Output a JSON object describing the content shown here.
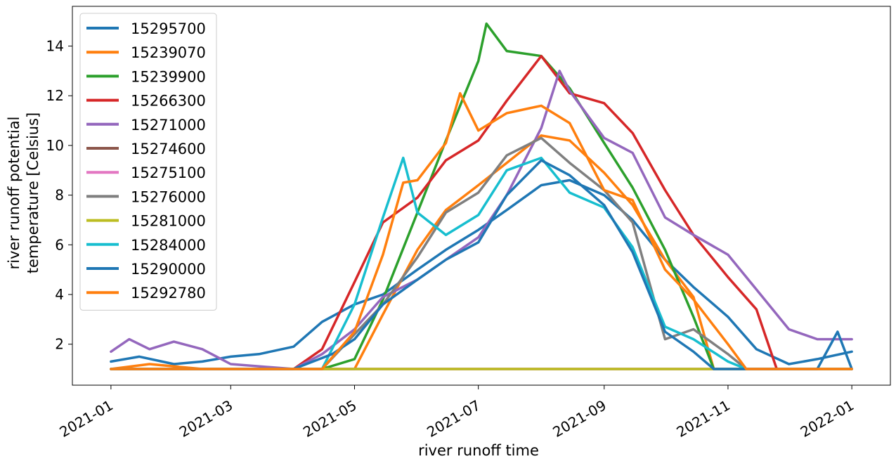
{
  "chart_data": {
    "type": "line",
    "title": "",
    "xlabel": "river runoff time",
    "ylabel_lines": [
      "river runoff potential",
      "temperature [Celsius]"
    ],
    "x_ticks": [
      "2021-01",
      "2021-03",
      "2021-05",
      "2021-07",
      "2021-09",
      "2021-11",
      "2022-01"
    ],
    "y_ticks": [
      2,
      4,
      6,
      8,
      10,
      12,
      14
    ],
    "xlim": [
      "2020-12-13",
      "2022-01-20"
    ],
    "ylim": [
      0.35,
      15.6
    ],
    "grid": false,
    "legend_position": "upper-left",
    "series": [
      {
        "name": "15295700",
        "color": "#1f77b4",
        "points": [
          [
            "2021-01-01",
            1.3
          ],
          [
            "2021-01-15",
            1.5
          ],
          [
            "2021-02-01",
            1.2
          ],
          [
            "2021-02-15",
            1.3
          ],
          [
            "2021-03-01",
            1.5
          ],
          [
            "2021-03-15",
            1.6
          ],
          [
            "2021-04-01",
            1.9
          ],
          [
            "2021-04-15",
            2.9
          ],
          [
            "2021-05-01",
            3.6
          ],
          [
            "2021-05-15",
            4.0
          ],
          [
            "2021-06-01",
            5.0
          ],
          [
            "2021-06-15",
            5.8
          ],
          [
            "2021-07-01",
            6.6
          ],
          [
            "2021-07-15",
            7.4
          ],
          [
            "2021-08-01",
            8.4
          ],
          [
            "2021-08-15",
            8.6
          ],
          [
            "2021-09-01",
            8.0
          ],
          [
            "2021-09-15",
            7.0
          ],
          [
            "2021-10-01",
            5.4
          ],
          [
            "2021-10-15",
            4.3
          ],
          [
            "2021-11-01",
            3.1
          ],
          [
            "2021-11-15",
            1.8
          ],
          [
            "2021-12-01",
            1.2
          ],
          [
            "2021-12-15",
            1.4
          ],
          [
            "2022-01-01",
            1.7
          ]
        ]
      },
      {
        "name": "15239070",
        "color": "#ff7f0e",
        "points": [
          [
            "2021-01-01",
            1.0
          ],
          [
            "2021-01-20",
            1.2
          ],
          [
            "2021-02-15",
            1.0
          ],
          [
            "2021-04-01",
            1.0
          ],
          [
            "2021-04-20",
            1.0
          ],
          [
            "2021-05-01",
            1.0
          ],
          [
            "2021-05-15",
            3.2
          ],
          [
            "2021-06-01",
            5.8
          ],
          [
            "2021-06-15",
            7.4
          ],
          [
            "2021-07-01",
            8.4
          ],
          [
            "2021-07-15",
            9.3
          ],
          [
            "2021-08-01",
            10.4
          ],
          [
            "2021-08-15",
            10.2
          ],
          [
            "2021-09-01",
            8.9
          ],
          [
            "2021-09-15",
            7.6
          ],
          [
            "2021-10-01",
            5.4
          ],
          [
            "2021-10-15",
            3.9
          ],
          [
            "2021-10-25",
            1.0
          ],
          [
            "2021-11-15",
            1.0
          ],
          [
            "2022-01-01",
            1.0
          ]
        ]
      },
      {
        "name": "15239900",
        "color": "#2ca02c",
        "points": [
          [
            "2021-01-01",
            1.0
          ],
          [
            "2021-04-15",
            1.0
          ],
          [
            "2021-05-01",
            1.4
          ],
          [
            "2021-05-15",
            3.8
          ],
          [
            "2021-06-01",
            7.3
          ],
          [
            "2021-06-15",
            10.2
          ],
          [
            "2021-07-01",
            13.4
          ],
          [
            "2021-07-05",
            14.9
          ],
          [
            "2021-07-15",
            13.8
          ],
          [
            "2021-08-01",
            13.6
          ],
          [
            "2021-08-15",
            12.3
          ],
          [
            "2021-09-01",
            10.1
          ],
          [
            "2021-09-15",
            8.3
          ],
          [
            "2021-10-01",
            5.8
          ],
          [
            "2021-10-15",
            3.1
          ],
          [
            "2021-10-25",
            1.0
          ],
          [
            "2022-01-01",
            1.0
          ]
        ]
      },
      {
        "name": "15266300",
        "color": "#d62728",
        "points": [
          [
            "2021-01-01",
            1.0
          ],
          [
            "2021-04-01",
            1.0
          ],
          [
            "2021-04-15",
            1.8
          ],
          [
            "2021-05-01",
            4.5
          ],
          [
            "2021-05-15",
            6.9
          ],
          [
            "2021-06-01",
            7.9
          ],
          [
            "2021-06-15",
            9.4
          ],
          [
            "2021-07-01",
            10.2
          ],
          [
            "2021-07-15",
            11.8
          ],
          [
            "2021-08-01",
            13.6
          ],
          [
            "2021-08-15",
            12.1
          ],
          [
            "2021-09-01",
            11.7
          ],
          [
            "2021-09-15",
            10.5
          ],
          [
            "2021-10-01",
            8.2
          ],
          [
            "2021-10-15",
            6.4
          ],
          [
            "2021-11-01",
            4.7
          ],
          [
            "2021-11-15",
            3.4
          ],
          [
            "2021-11-25",
            1.0
          ],
          [
            "2022-01-01",
            1.0
          ]
        ]
      },
      {
        "name": "15271000",
        "color": "#9467bd",
        "points": [
          [
            "2021-01-01",
            1.7
          ],
          [
            "2021-01-10",
            2.2
          ],
          [
            "2021-01-20",
            1.8
          ],
          [
            "2021-02-01",
            2.1
          ],
          [
            "2021-02-15",
            1.8
          ],
          [
            "2021-03-01",
            1.2
          ],
          [
            "2021-04-01",
            1.0
          ],
          [
            "2021-04-15",
            1.6
          ],
          [
            "2021-05-01",
            2.6
          ],
          [
            "2021-05-15",
            3.9
          ],
          [
            "2021-06-01",
            4.6
          ],
          [
            "2021-06-15",
            5.4
          ],
          [
            "2021-07-01",
            6.3
          ],
          [
            "2021-07-15",
            8.0
          ],
          [
            "2021-08-01",
            10.7
          ],
          [
            "2021-08-10",
            13.0
          ],
          [
            "2021-08-15",
            12.2
          ],
          [
            "2021-09-01",
            10.3
          ],
          [
            "2021-09-15",
            9.7
          ],
          [
            "2021-10-01",
            7.1
          ],
          [
            "2021-10-15",
            6.4
          ],
          [
            "2021-11-01",
            5.6
          ],
          [
            "2021-11-15",
            4.2
          ],
          [
            "2021-12-01",
            2.6
          ],
          [
            "2021-12-15",
            2.2
          ],
          [
            "2022-01-01",
            2.2
          ]
        ]
      },
      {
        "name": "15274600",
        "color": "#8c564b",
        "points": [
          [
            "2021-01-01",
            1.0
          ],
          [
            "2022-01-01",
            1.0
          ]
        ]
      },
      {
        "name": "15275100",
        "color": "#e377c2",
        "points": [
          [
            "2021-01-01",
            1.0
          ],
          [
            "2022-01-01",
            1.0
          ]
        ]
      },
      {
        "name": "15276000",
        "color": "#7f7f7f",
        "points": [
          [
            "2021-01-01",
            1.0
          ],
          [
            "2021-04-15",
            1.0
          ],
          [
            "2021-05-01",
            2.4
          ],
          [
            "2021-05-15",
            3.6
          ],
          [
            "2021-06-01",
            5.5
          ],
          [
            "2021-06-15",
            7.3
          ],
          [
            "2021-07-01",
            8.1
          ],
          [
            "2021-07-15",
            9.6
          ],
          [
            "2021-08-01",
            10.3
          ],
          [
            "2021-08-15",
            9.3
          ],
          [
            "2021-09-01",
            8.2
          ],
          [
            "2021-09-15",
            6.9
          ],
          [
            "2021-10-01",
            2.2
          ],
          [
            "2021-10-15",
            2.6
          ],
          [
            "2021-11-01",
            1.6
          ],
          [
            "2021-11-10",
            1.0
          ],
          [
            "2022-01-01",
            1.0
          ]
        ]
      },
      {
        "name": "15281000",
        "color": "#bcbd22",
        "points": [
          [
            "2021-01-01",
            1.0
          ],
          [
            "2022-01-01",
            1.0
          ]
        ]
      },
      {
        "name": "15284000",
        "color": "#17becf",
        "points": [
          [
            "2021-01-01",
            1.0
          ],
          [
            "2021-04-15",
            1.0
          ],
          [
            "2021-05-01",
            3.6
          ],
          [
            "2021-05-15",
            7.1
          ],
          [
            "2021-05-25",
            9.5
          ],
          [
            "2021-06-01",
            7.3
          ],
          [
            "2021-06-15",
            6.4
          ],
          [
            "2021-07-01",
            7.2
          ],
          [
            "2021-07-15",
            9.0
          ],
          [
            "2021-08-01",
            9.5
          ],
          [
            "2021-08-15",
            8.1
          ],
          [
            "2021-09-01",
            7.5
          ],
          [
            "2021-09-15",
            5.9
          ],
          [
            "2021-10-01",
            2.7
          ],
          [
            "2021-10-15",
            2.2
          ],
          [
            "2021-11-01",
            1.3
          ],
          [
            "2021-11-10",
            1.0
          ],
          [
            "2022-01-01",
            1.0
          ]
        ]
      },
      {
        "name": "15290000",
        "color": "#1f77b4",
        "points": [
          [
            "2021-01-01",
            1.0
          ],
          [
            "2021-04-01",
            1.0
          ],
          [
            "2021-04-20",
            1.6
          ],
          [
            "2021-05-01",
            2.2
          ],
          [
            "2021-05-15",
            3.6
          ],
          [
            "2021-06-01",
            4.6
          ],
          [
            "2021-06-15",
            5.4
          ],
          [
            "2021-07-01",
            6.1
          ],
          [
            "2021-07-15",
            8.0
          ],
          [
            "2021-08-01",
            9.4
          ],
          [
            "2021-08-15",
            8.8
          ],
          [
            "2021-09-01",
            7.6
          ],
          [
            "2021-09-15",
            5.7
          ],
          [
            "2021-10-01",
            2.5
          ],
          [
            "2021-10-15",
            1.7
          ],
          [
            "2021-10-25",
            1.0
          ],
          [
            "2021-12-15",
            1.0
          ],
          [
            "2021-12-25",
            2.5
          ],
          [
            "2022-01-01",
            1.0
          ]
        ]
      },
      {
        "name": "15292780",
        "color": "#ff7f0e",
        "points": [
          [
            "2021-01-01",
            1.0
          ],
          [
            "2021-04-15",
            1.0
          ],
          [
            "2021-05-01",
            2.5
          ],
          [
            "2021-05-15",
            5.6
          ],
          [
            "2021-05-25",
            8.5
          ],
          [
            "2021-06-01",
            8.6
          ],
          [
            "2021-06-15",
            10.1
          ],
          [
            "2021-06-22",
            12.1
          ],
          [
            "2021-07-01",
            10.6
          ],
          [
            "2021-07-15",
            11.3
          ],
          [
            "2021-08-01",
            11.6
          ],
          [
            "2021-08-15",
            10.9
          ],
          [
            "2021-09-01",
            8.2
          ],
          [
            "2021-09-15",
            7.8
          ],
          [
            "2021-10-01",
            5.0
          ],
          [
            "2021-10-15",
            3.8
          ],
          [
            "2021-11-01",
            2.0
          ],
          [
            "2021-11-10",
            1.0
          ],
          [
            "2022-01-01",
            1.0
          ]
        ]
      }
    ]
  }
}
